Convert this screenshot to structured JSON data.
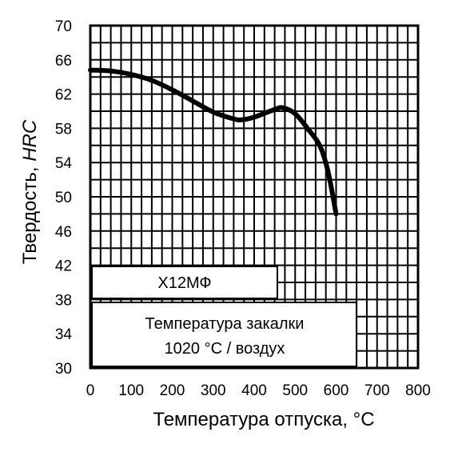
{
  "chart_data": {
    "type": "line",
    "xlabel": "Температура отпуска, °C",
    "ylabel_main": "Твердость, ",
    "ylabel_italic": "HRC",
    "xlim": [
      0,
      800
    ],
    "ylim": [
      30,
      70
    ],
    "x_ticks": [
      "0",
      "100",
      "200",
      "300",
      "400",
      "500",
      "600",
      "700",
      "800"
    ],
    "y_ticks": [
      "70",
      "66",
      "62",
      "58",
      "54",
      "50",
      "46",
      "42",
      "38",
      "34",
      "30"
    ],
    "grid": true,
    "series": [
      {
        "x": [
          0,
          50,
          100,
          150,
          200,
          250,
          300,
          350,
          370,
          400,
          450,
          470,
          500,
          530,
          560,
          580,
          600
        ],
        "y": [
          64.8,
          64.7,
          64.3,
          63.6,
          62.5,
          61.2,
          59.9,
          59.1,
          59.0,
          59.3,
          60.2,
          60.4,
          59.7,
          58.0,
          56.0,
          53.0,
          48.0
        ]
      }
    ],
    "annotations": {
      "steel_grade": "Х12МФ",
      "quench_line1": "Температура закалки",
      "quench_line2": "1020 °C / воздух"
    }
  }
}
